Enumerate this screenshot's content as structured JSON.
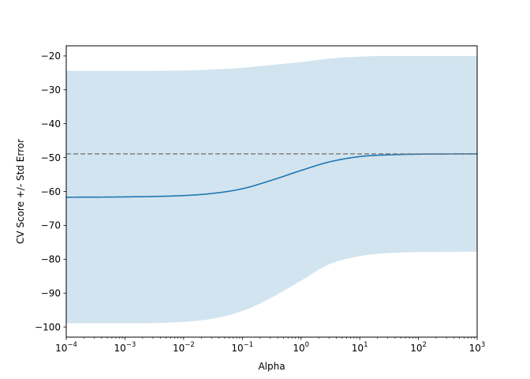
{
  "chart_data": {
    "type": "line",
    "title": "",
    "xlabel": "Alpha",
    "ylabel": "CV Score +/- Std Error",
    "xscale": "log",
    "xlim": [
      0.0001,
      1000
    ],
    "ylim": [
      -103,
      -17
    ],
    "grid": false,
    "x_ticks": [
      {
        "base": "10",
        "exp": "−4",
        "value": 0.0001
      },
      {
        "base": "10",
        "exp": "−3",
        "value": 0.001
      },
      {
        "base": "10",
        "exp": "−2",
        "value": 0.01
      },
      {
        "base": "10",
        "exp": "−1",
        "value": 0.1
      },
      {
        "base": "10",
        "exp": "0",
        "value": 1
      },
      {
        "base": "10",
        "exp": "1",
        "value": 10
      },
      {
        "base": "10",
        "exp": "2",
        "value": 100
      },
      {
        "base": "10",
        "exp": "3",
        "value": 1000
      }
    ],
    "y_ticks": [
      {
        "label": "−20",
        "value": -20
      },
      {
        "label": "−30",
        "value": -30
      },
      {
        "label": "−40",
        "value": -40
      },
      {
        "label": "−50",
        "value": -50
      },
      {
        "label": "−60",
        "value": -60
      },
      {
        "label": "−70",
        "value": -70
      },
      {
        "label": "−80",
        "value": -80
      },
      {
        "label": "−90",
        "value": -90
      },
      {
        "label": "−100",
        "value": -100
      }
    ],
    "series": [
      {
        "color": "#1f77b4",
        "x": [
          0.0001,
          0.001,
          0.01,
          0.03,
          0.1,
          0.3,
          1,
          3,
          10,
          30,
          100,
          1000
        ],
        "y": [
          -61.7,
          -61.6,
          -61.2,
          -60.6,
          -59.2,
          -56.8,
          -53.8,
          -51.3,
          -49.7,
          -49.2,
          -49.0,
          -48.9
        ]
      }
    ],
    "band": {
      "color": "#1f77b4",
      "opacity": 0.2,
      "x": [
        0.0001,
        0.001,
        0.01,
        0.03,
        0.1,
        0.3,
        1,
        3,
        10,
        30,
        100,
        1000
      ],
      "upper": [
        -24.4,
        -24.4,
        -24.3,
        -24.0,
        -23.5,
        -22.7,
        -21.8,
        -20.8,
        -20.2,
        -20.0,
        -20.0,
        -20.0
      ],
      "lower": [
        -98.9,
        -98.9,
        -98.5,
        -97.6,
        -95.3,
        -91.5,
        -86.3,
        -81.5,
        -79.1,
        -78.2,
        -77.9,
        -77.8
      ]
    },
    "reference_line": {
      "y": -48.9,
      "style": "dashed",
      "color": "#808080"
    }
  }
}
